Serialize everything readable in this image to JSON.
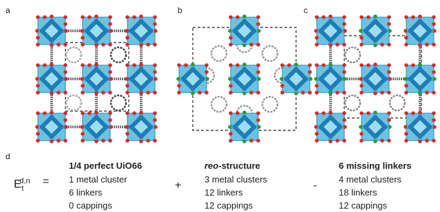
{
  "panels": [
    {
      "label": "a"
    },
    {
      "label": "b"
    },
    {
      "label": "c"
    }
  ],
  "equation": {
    "label": "d",
    "lhs": {
      "base": "E",
      "subscript": "t",
      "superscript": "d,n"
    },
    "equals": "=",
    "terms": [
      {
        "title": "1/4 perfect UiO66",
        "lines": [
          "1 metal cluster",
          "6 linkers",
          "0 cappings"
        ]
      },
      {
        "operator": "+",
        "title_italic": "reo",
        "title_rest": "-structure",
        "lines": [
          "3 metal clusters",
          "12 linkers",
          "12 cappings"
        ]
      },
      {
        "operator": "-",
        "title": "6 missing linkers",
        "lines": [
          "4 metal clusters",
          "18 linkers",
          "12 cappings"
        ]
      }
    ]
  }
}
